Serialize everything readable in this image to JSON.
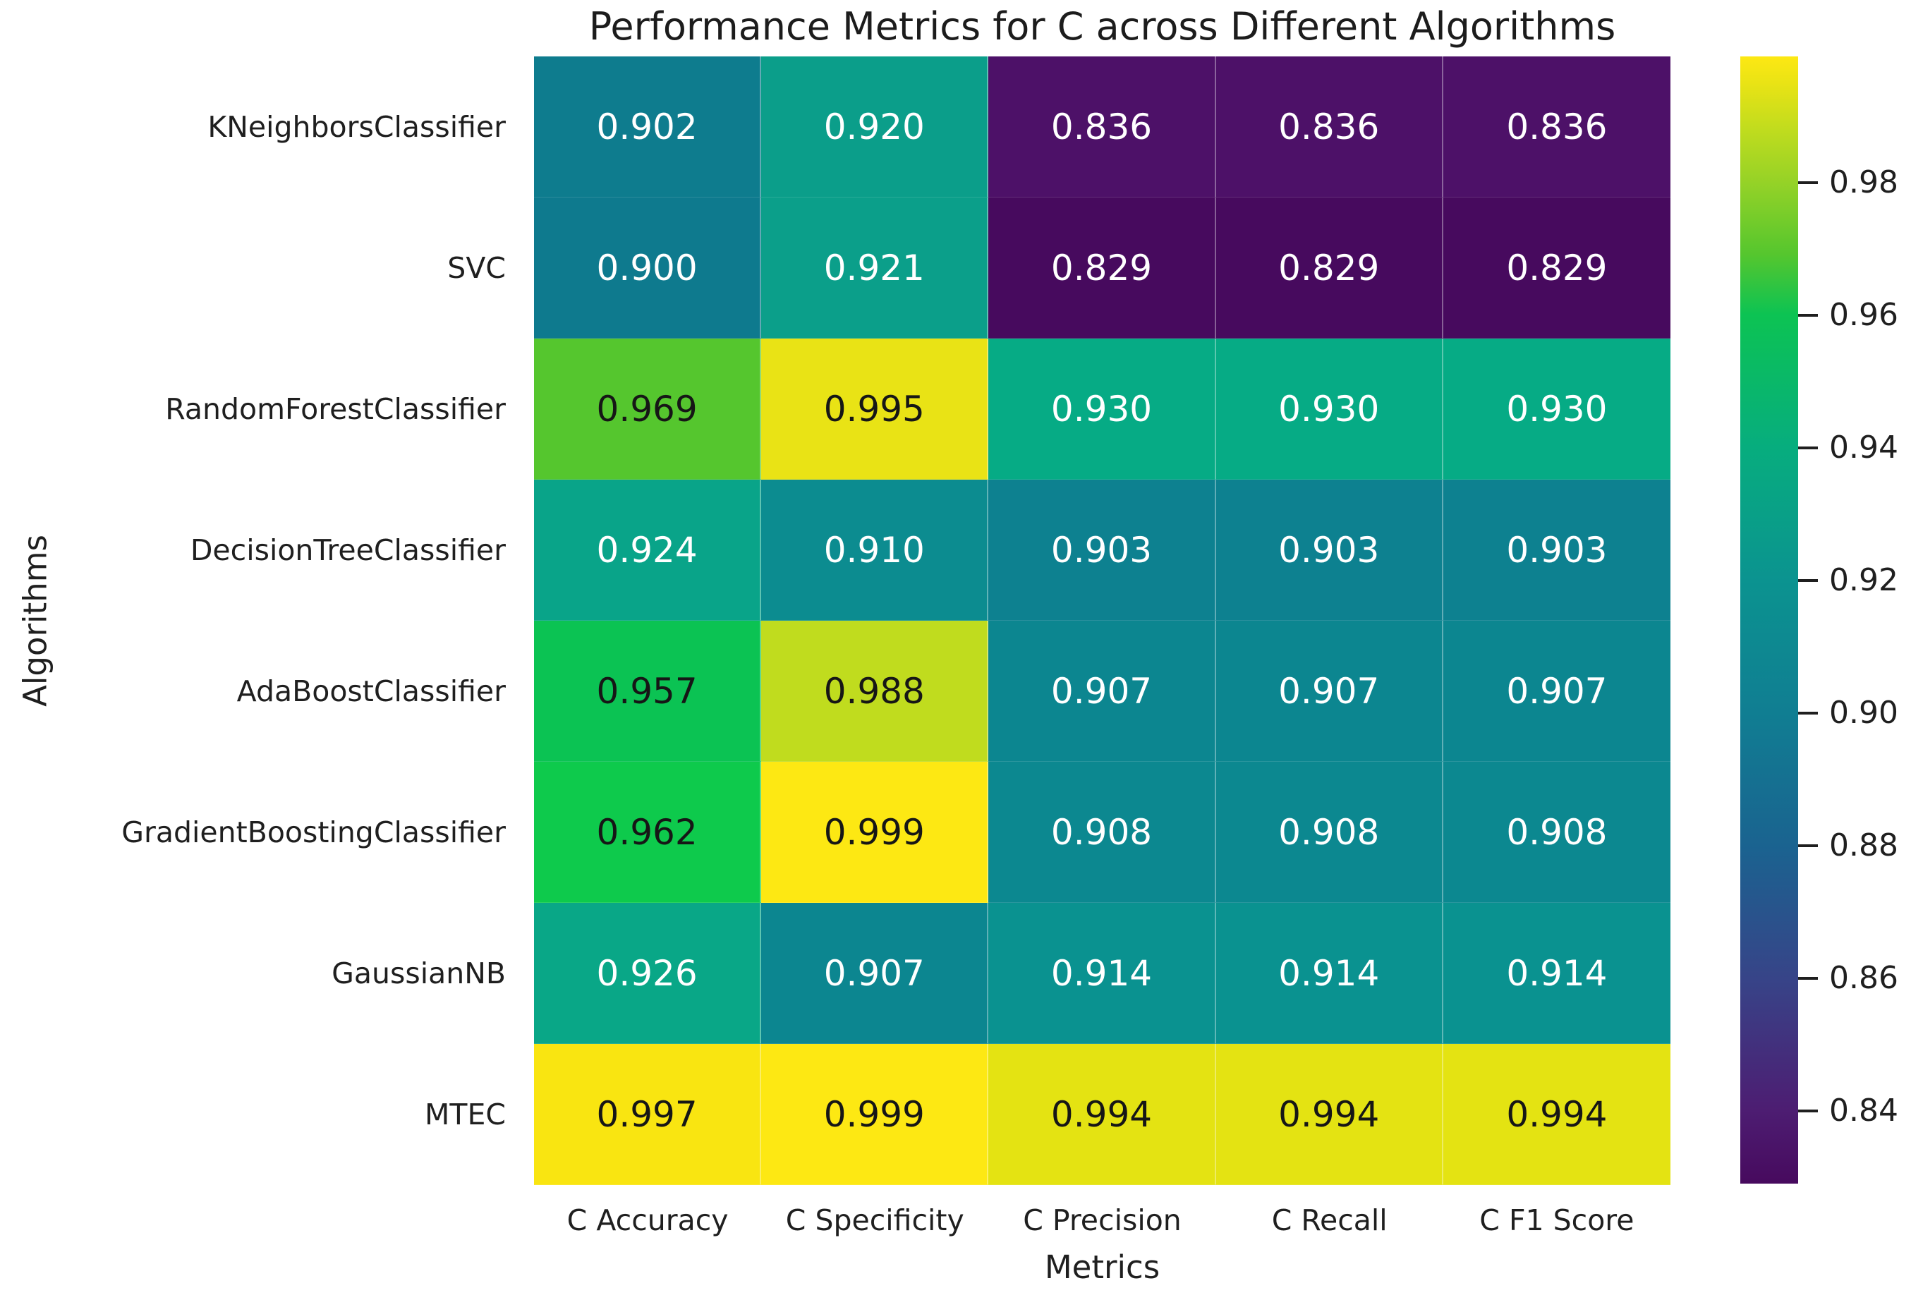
{
  "title": "Performance Metrics for C across Different Algorithms",
  "chart_data": {
    "type": "heatmap",
    "title": "Performance Metrics for C across Different Algorithms",
    "xlabel": "Metrics",
    "ylabel": "Algorithms",
    "columns": [
      "C Accuracy",
      "C Specificity",
      "C Precision",
      "C Recall",
      "C F1 Score"
    ],
    "rows": [
      "KNeighborsClassifier",
      "SVC",
      "RandomForestClassifier",
      "DecisionTreeClassifier",
      "AdaBoostClassifier",
      "GradientBoostingClassifier",
      "GaussianNB",
      "MTEC"
    ],
    "values": [
      [
        0.902,
        0.92,
        0.836,
        0.836,
        0.836
      ],
      [
        0.9,
        0.921,
        0.829,
        0.829,
        0.829
      ],
      [
        0.969,
        0.995,
        0.93,
        0.93,
        0.93
      ],
      [
        0.924,
        0.91,
        0.903,
        0.903,
        0.903
      ],
      [
        0.957,
        0.988,
        0.907,
        0.907,
        0.907
      ],
      [
        0.962,
        0.999,
        0.908,
        0.908,
        0.908
      ],
      [
        0.926,
        0.907,
        0.914,
        0.914,
        0.914
      ],
      [
        0.997,
        0.999,
        0.994,
        0.994,
        0.994
      ]
    ],
    "value_decimals": 3,
    "colormap": "viridis",
    "vmin": 0.829,
    "vmax": 0.999,
    "grid": false,
    "legend_position": "colorbar-right",
    "colorbar_ticks": [
      0.98,
      0.96,
      0.94,
      0.92,
      0.9,
      0.88,
      0.86,
      0.84
    ],
    "cell_colors": [
      [
        "#0e7c8e",
        "#0b9e8a",
        "#4d1168",
        "#4d1168",
        "#4d1168"
      ],
      [
        "#0e7a8e",
        "#0b9f8a",
        "#470a5e",
        "#470a5e",
        "#470a5e"
      ],
      [
        "#55c62e",
        "#e9e315",
        "#06ab85",
        "#06ab85",
        "#06ab85"
      ],
      [
        "#09a489",
        "#0c8c90",
        "#0d8190",
        "#0d8190",
        "#0d8190"
      ],
      [
        "#0bc353",
        "#c0dc1e",
        "#0c8690",
        "#0c8690",
        "#0c8690"
      ],
      [
        "#0eca4c",
        "#fde813",
        "#0c8890",
        "#0c8890",
        "#0c8890"
      ],
      [
        "#09a787",
        "#0c8690",
        "#0a9290",
        "#0a9290",
        "#0a9290"
      ],
      [
        "#f9e511",
        "#fde813",
        "#e4e312",
        "#e4e312",
        "#e4e312"
      ]
    ],
    "annotation_colors": {
      "dark": "#161616",
      "light": "#ffffff"
    },
    "colorbar_gradient": [
      {
        "pos": 0,
        "color": "#fde813"
      },
      {
        "pos": 2.4,
        "color": "#e9e315"
      },
      {
        "pos": 6.5,
        "color": "#c0dc1e"
      },
      {
        "pos": 11.2,
        "color": "#95d227"
      },
      {
        "pos": 17.6,
        "color": "#55c62e"
      },
      {
        "pos": 22.9,
        "color": "#0cc353"
      },
      {
        "pos": 34.7,
        "color": "#07ad7e"
      },
      {
        "pos": 46.5,
        "color": "#0b9390"
      },
      {
        "pos": 58.2,
        "color": "#107e92"
      },
      {
        "pos": 70,
        "color": "#1a6390"
      },
      {
        "pos": 81.8,
        "color": "#374488"
      },
      {
        "pos": 93.5,
        "color": "#4d1d72"
      },
      {
        "pos": 100,
        "color": "#470a5e"
      }
    ]
  }
}
